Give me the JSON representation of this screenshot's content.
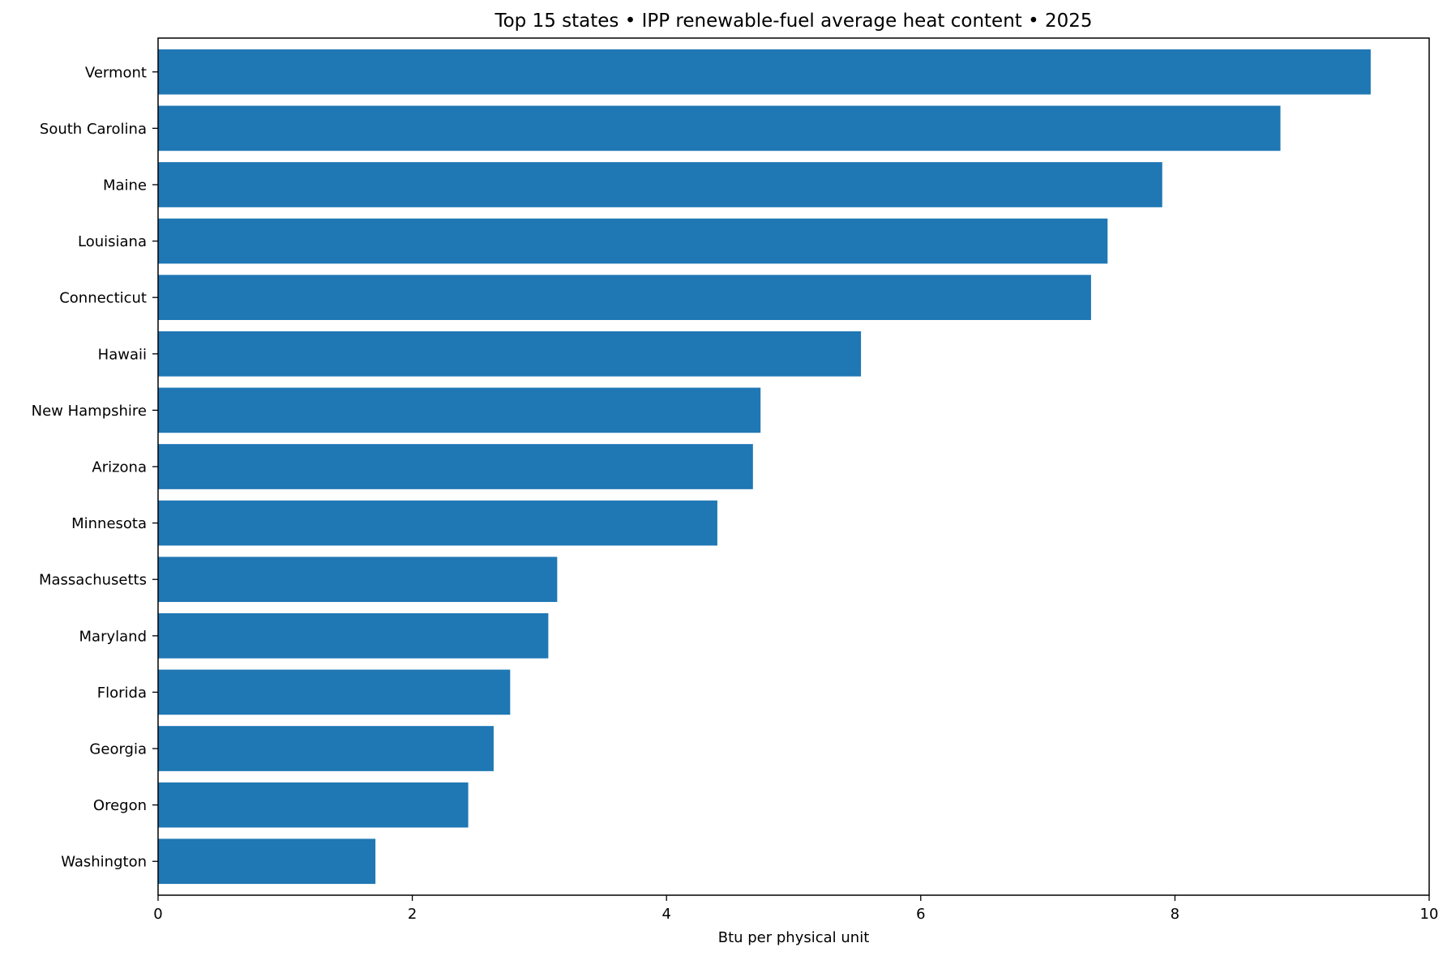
{
  "chart_data": {
    "type": "bar",
    "orientation": "horizontal",
    "title": "Top 15 states • IPP renewable-fuel average heat content • 2025",
    "xlabel": "Btu per physical unit",
    "ylabel": "",
    "xlim": [
      0,
      10
    ],
    "xticks": [
      0,
      2,
      4,
      6,
      8,
      10
    ],
    "grid": false,
    "legend": "none",
    "bar_color": "#1f77b4",
    "categories": [
      "Vermont",
      "South Carolina",
      "Maine",
      "Louisiana",
      "Connecticut",
      "Hawaii",
      "New Hampshire",
      "Arizona",
      "Minnesota",
      "Massachusetts",
      "Maryland",
      "Florida",
      "Georgia",
      "Oregon",
      "Washington"
    ],
    "values": [
      9.54,
      8.83,
      7.9,
      7.47,
      7.34,
      5.53,
      4.74,
      4.68,
      4.4,
      3.14,
      3.07,
      2.77,
      2.64,
      2.44,
      1.71
    ]
  }
}
